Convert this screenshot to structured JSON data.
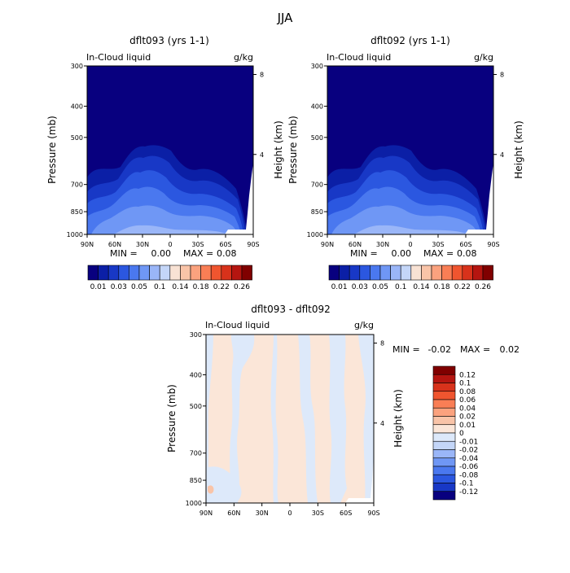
{
  "page": {
    "title": "JJA"
  },
  "colors": {
    "bar_scale": [
      "#08007f",
      "#0b1fa6",
      "#1838c6",
      "#2b57e0",
      "#4a78ef",
      "#6f97f5",
      "#9ab6f8",
      "#c4d6f8",
      "#f8e2d4",
      "#f9c4a8",
      "#fba27e",
      "#f97e55",
      "#f0552f",
      "#d8321b",
      "#b51510",
      "#800000"
    ],
    "diff_scale": [
      "#08007f",
      "#1838c6",
      "#2b57e0",
      "#4a78ef",
      "#6f97f5",
      "#9ab6f8",
      "#c4d6f8",
      "#dde9fa",
      "#fbe6d8",
      "#f9c4a8",
      "#fba27e",
      "#f97e55",
      "#f0552f",
      "#d8321b",
      "#b51510",
      "#800000"
    ]
  },
  "chart_data": [
    {
      "type": "heatmap",
      "title": "dflt093 (yrs 1-1)",
      "label_left": "In-Cloud liquid",
      "label_right": "g/kg",
      "ylabel": "Pressure (mb)",
      "ylabel_right": "Height (km)",
      "x_ticks": [
        "90N",
        "60N",
        "30N",
        "0",
        "30S",
        "60S",
        "90S"
      ],
      "x_range": [
        90,
        -90
      ],
      "y_ticks": [
        "300",
        "400",
        "500",
        "700",
        "850",
        "1000"
      ],
      "y_ticks_values": [
        300,
        400,
        500,
        700,
        850,
        1000
      ],
      "y_range": [
        300,
        1000
      ],
      "height_ticks": [
        "8",
        "4"
      ],
      "height_ticks_values": [
        8,
        4
      ],
      "min_label": "MIN =",
      "min_value": "0.00",
      "max_label": "MAX =",
      "max_value": "0.08",
      "colorbar_labels": [
        "0.01",
        "0.03",
        "0.05",
        "0.1",
        "0.14",
        "0.18",
        "0.22",
        "0.26"
      ]
    },
    {
      "type": "heatmap",
      "title": "dflt092 (yrs 1-1)",
      "label_left": "In-Cloud liquid",
      "label_right": "g/kg",
      "ylabel": "Pressure (mb)",
      "ylabel_right": "Height (km)",
      "x_ticks": [
        "90N",
        "60N",
        "30N",
        "0",
        "30S",
        "60S",
        "90S"
      ],
      "x_range": [
        90,
        -90
      ],
      "y_ticks": [
        "300",
        "400",
        "500",
        "700",
        "850",
        "1000"
      ],
      "y_ticks_values": [
        300,
        400,
        500,
        700,
        850,
        1000
      ],
      "y_range": [
        300,
        1000
      ],
      "height_ticks": [
        "8",
        "4"
      ],
      "height_ticks_values": [
        8,
        4
      ],
      "min_label": "MIN =",
      "min_value": "0.00",
      "max_label": "MAX =",
      "max_value": "0.08",
      "colorbar_labels": [
        "0.01",
        "0.03",
        "0.05",
        "0.1",
        "0.14",
        "0.18",
        "0.22",
        "0.26"
      ]
    },
    {
      "type": "heatmap",
      "title": "dflt093 - dflt092",
      "label_left": "In-Cloud liquid",
      "label_right": "g/kg",
      "ylabel": "Pressure (mb)",
      "ylabel_right": "Height (km)",
      "x_ticks": [
        "90N",
        "60N",
        "30N",
        "0",
        "30S",
        "60S",
        "90S"
      ],
      "x_range": [
        90,
        -90
      ],
      "y_ticks": [
        "300",
        "400",
        "500",
        "700",
        "850",
        "1000"
      ],
      "y_ticks_values": [
        300,
        400,
        500,
        700,
        850,
        1000
      ],
      "y_range": [
        300,
        1000
      ],
      "height_ticks": [
        "8",
        "4"
      ],
      "height_ticks_values": [
        8,
        4
      ],
      "min_label": "MIN =",
      "min_value": "-0.02",
      "max_label": "MAX =",
      "max_value": "0.02",
      "colorbar_labels": [
        "0.12",
        "0.1",
        "0.08",
        "0.06",
        "0.04",
        "0.02",
        "0.01",
        "0",
        "-0.01",
        "-0.02",
        "-0.04",
        "-0.06",
        "-0.08",
        "-0.1",
        "-0.12"
      ]
    }
  ]
}
